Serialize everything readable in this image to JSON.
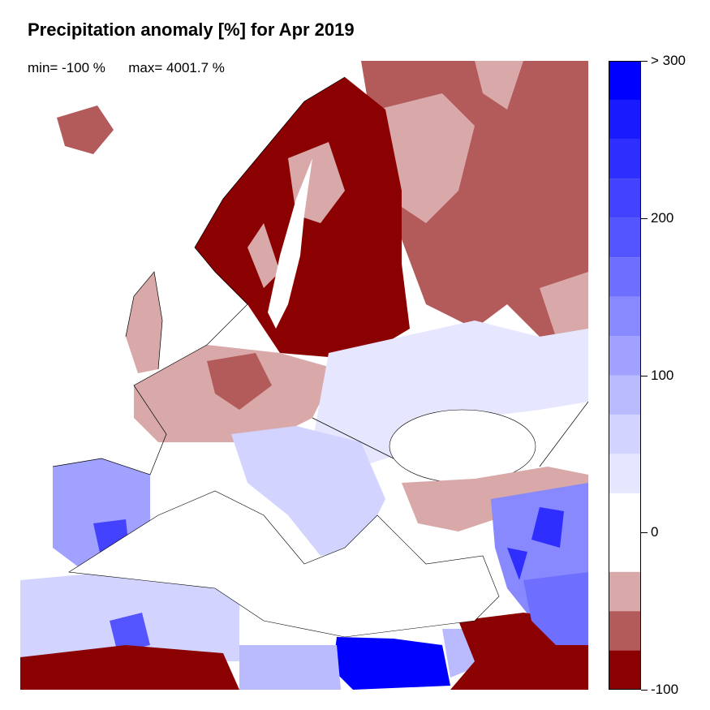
{
  "title": "Precipitation anomaly [%] for Apr 2019",
  "stats": {
    "min_label": "min= -100 %",
    "max_label": "max= 4001.7 %"
  },
  "colorbar": {
    "range": [
      -100,
      300
    ],
    "tick_labels": [
      "-100",
      "0",
      "100",
      "200",
      "> 300"
    ],
    "tick_values": [
      -100,
      0,
      100,
      200,
      300
    ],
    "bins": [
      {
        "from": -100,
        "to": -75,
        "color": "#8b0000"
      },
      {
        "from": -75,
        "to": -50,
        "color": "#b35a5a"
      },
      {
        "from": -50,
        "to": -25,
        "color": "#d9a9a9"
      },
      {
        "from": -25,
        "to": 0,
        "color": "#ffffff"
      },
      {
        "from": 0,
        "to": 25,
        "color": "#ffffff"
      },
      {
        "from": 25,
        "to": 50,
        "color": "#e6e6ff"
      },
      {
        "from": 50,
        "to": 75,
        "color": "#d3d3ff"
      },
      {
        "from": 75,
        "to": 100,
        "color": "#babaff"
      },
      {
        "from": 100,
        "to": 125,
        "color": "#a1a1ff"
      },
      {
        "from": 125,
        "to": 150,
        "color": "#8888ff"
      },
      {
        "from": 150,
        "to": 175,
        "color": "#6f6fff"
      },
      {
        "from": 175,
        "to": 200,
        "color": "#5555ff"
      },
      {
        "from": 200,
        "to": 225,
        "color": "#4242ff"
      },
      {
        "from": 225,
        "to": 250,
        "color": "#2e2eff"
      },
      {
        "from": 250,
        "to": 275,
        "color": "#1a1aff"
      },
      {
        "from": 275,
        "to": 300,
        "color": "#0000ff"
      }
    ]
  }
}
